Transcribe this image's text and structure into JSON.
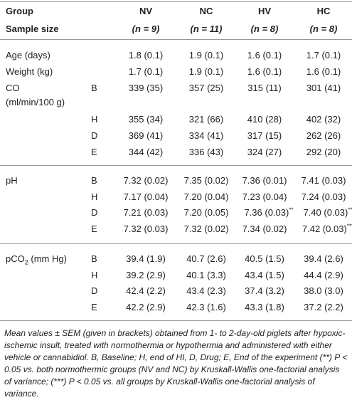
{
  "header": {
    "group": "Group",
    "sample_size": "Sample size",
    "columns": [
      {
        "name": "NV",
        "n": "(n = 9)"
      },
      {
        "name": "NC",
        "n": "(n = 11)"
      },
      {
        "name": "HV",
        "n": "(n = 8)"
      },
      {
        "name": "HC",
        "n": "(n = 8)"
      }
    ]
  },
  "sections": [
    {
      "label": "Age (days)",
      "rows": [
        {
          "cells": [
            {
              "text": "1.8 (0.1)"
            },
            {
              "text": "1.9 (0.1)"
            },
            {
              "text": "1.6 (0.1)"
            },
            {
              "text": "1.7 (0.1)"
            }
          ]
        }
      ]
    },
    {
      "label": "Weight (kg)",
      "rows": [
        {
          "cells": [
            {
              "text": "1.7 (0.1)"
            },
            {
              "text": "1.9 (0.1)"
            },
            {
              "text": "1.6 (0.1)"
            },
            {
              "text": "1.6 (0.1)"
            }
          ]
        }
      ]
    },
    {
      "label": "CO",
      "label_line2": "(ml/min/100 g)",
      "rows": [
        {
          "sublabel": "B",
          "cells": [
            {
              "text": "339 (35)"
            },
            {
              "text": "357 (25)"
            },
            {
              "text": "315 (11)"
            },
            {
              "text": "301 (41)"
            }
          ]
        },
        {
          "sublabel": "H",
          "cells": [
            {
              "text": "355 (34)"
            },
            {
              "text": "321 (66)"
            },
            {
              "text": "410 (28)"
            },
            {
              "text": "402 (32)"
            }
          ]
        },
        {
          "sublabel": "D",
          "cells": [
            {
              "text": "369 (41)"
            },
            {
              "text": "334 (41)"
            },
            {
              "text": "317 (15)"
            },
            {
              "text": "262 (26)"
            }
          ]
        },
        {
          "sublabel": "E",
          "cells": [
            {
              "text": "344 (42)"
            },
            {
              "text": "336 (43)"
            },
            {
              "text": "324 (27)"
            },
            {
              "text": "292 (20)"
            }
          ]
        }
      ]
    },
    {
      "label": "pH",
      "rows": [
        {
          "sublabel": "B",
          "cells": [
            {
              "text": "7.32 (0.02)"
            },
            {
              "text": "7.35 (0.02)"
            },
            {
              "text": "7.36 (0.01)"
            },
            {
              "text": "7.41 (0.03)"
            }
          ]
        },
        {
          "sublabel": "H",
          "cells": [
            {
              "text": "7.17 (0.04)"
            },
            {
              "text": "7.20 (0.04)"
            },
            {
              "text": "7.23 (0.04)"
            },
            {
              "text": "7.24 (0.03)"
            }
          ]
        },
        {
          "sublabel": "D",
          "cells": [
            {
              "text": "7.21 (0.03)"
            },
            {
              "text": "7.20 (0.05)"
            },
            {
              "text": "7.36 (0.03)",
              "sup": "**"
            },
            {
              "text": "7.40 (0.03)",
              "sup": "**"
            }
          ]
        },
        {
          "sublabel": "E",
          "cells": [
            {
              "text": "7.32 (0.03)"
            },
            {
              "text": "7.32 (0.02)"
            },
            {
              "text": "7.34 (0.02)"
            },
            {
              "text": "7.42 (0.03)",
              "sup": "***"
            }
          ]
        }
      ]
    },
    {
      "label": "pCO",
      "label_sub": "2",
      "label_rest": " (mm Hg)",
      "rows": [
        {
          "sublabel": "B",
          "cells": [
            {
              "text": "39.4 (1.9)"
            },
            {
              "text": "40.7 (2.6)"
            },
            {
              "text": "40.5 (1.5)"
            },
            {
              "text": "39.4 (2.6)"
            }
          ]
        },
        {
          "sublabel": "H",
          "cells": [
            {
              "text": "39.2 (2.9)"
            },
            {
              "text": "40.1 (3.3)"
            },
            {
              "text": "43.4 (1.5)"
            },
            {
              "text": "44.4 (2.9)"
            }
          ]
        },
        {
          "sublabel": "D",
          "cells": [
            {
              "text": "42.4 (2.2)"
            },
            {
              "text": "43.4 (2.3)"
            },
            {
              "text": "37.4 (3.2)"
            },
            {
              "text": "38.0 (3.0)"
            }
          ]
        },
        {
          "sublabel": "E",
          "cells": [
            {
              "text": "42.2 (2.9)"
            },
            {
              "text": "42.3 (1.6)"
            },
            {
              "text": "43.3 (1.8)"
            },
            {
              "text": "37.2 (2.2)"
            }
          ]
        }
      ]
    }
  ],
  "footnote": "Mean values ± SEM (given in brackets) obtained from 1- to 2-day-old piglets after hypoxic-ischemic insult, treated with normothermia or hypothermia and administered with either vehicle or cannabidiol. B, Baseline; H, end of HI, D, Drug; E, End of the experiment (**) P < 0.05 vs. both normothermic groups (NV and NC) by Kruskall-Wallis one-factorial analysis of variance; (***) P < 0.05 vs. all groups by Kruskall-Wallis one-factorial analysis of variance."
}
